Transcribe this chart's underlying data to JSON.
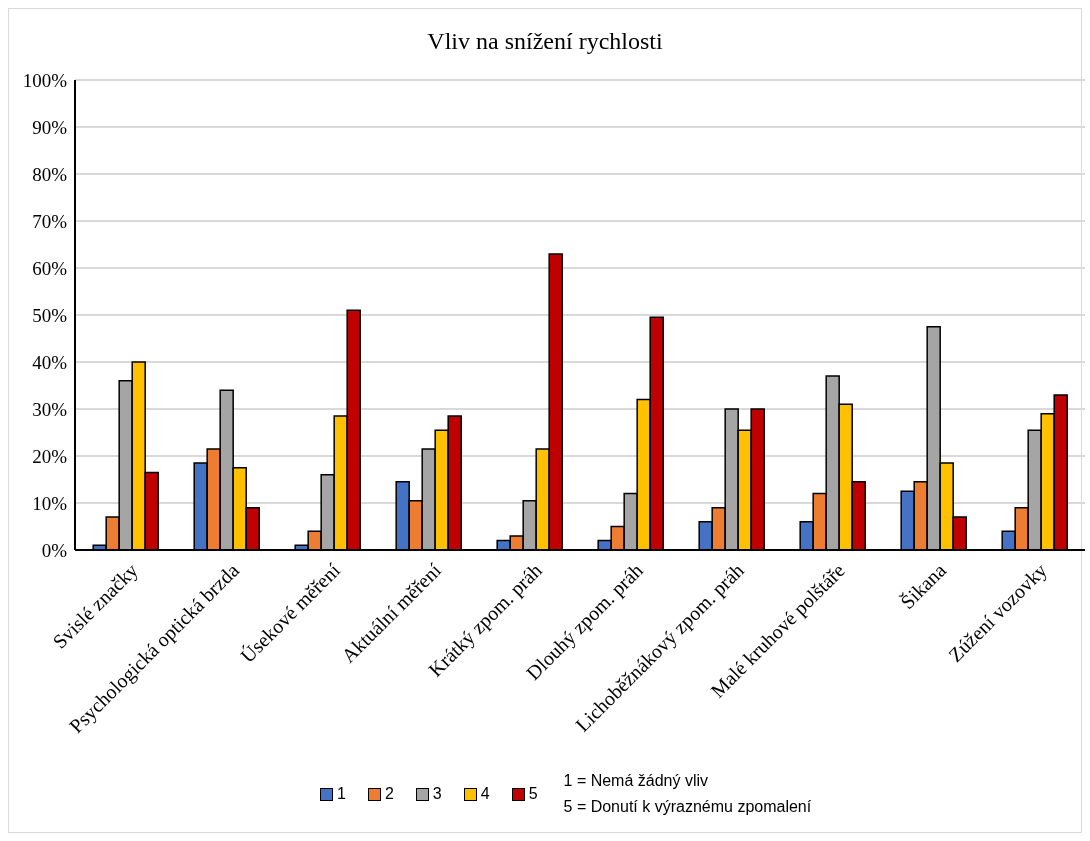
{
  "chart_data": {
    "type": "bar",
    "title": "Vliv na snížení rychlosti",
    "categories": [
      "Svislé značky",
      "Psychologická optická brzda",
      "Úsekové měření",
      "Aktuální měření",
      "Krátký zpom. práh",
      "Dlouhý zpom. práh",
      "Lichoběžnákový zpom. práh",
      "Malé kruhové polštáře",
      "Šikana",
      "Zúžení vozovky"
    ],
    "series": [
      {
        "name": "1",
        "color": "#4472c4",
        "values": [
          1,
          18.5,
          1,
          14.5,
          2,
          2,
          6,
          6,
          12.5,
          4
        ]
      },
      {
        "name": "2",
        "color": "#ed7d31",
        "values": [
          7,
          21.5,
          4,
          10.5,
          3,
          5,
          9,
          12,
          14.5,
          9
        ]
      },
      {
        "name": "3",
        "color": "#a5a5a5",
        "values": [
          36,
          34,
          16,
          21.5,
          10.5,
          12,
          30,
          37,
          47.5,
          25.5
        ]
      },
      {
        "name": "4",
        "color": "#ffc000",
        "values": [
          40,
          17.5,
          28.5,
          25.5,
          21.5,
          32,
          25.5,
          31,
          18.5,
          29
        ]
      },
      {
        "name": "5",
        "color": "#c00000",
        "values": [
          16.5,
          9,
          51,
          28.5,
          63,
          49.5,
          30,
          14.5,
          7,
          33
        ]
      }
    ],
    "ylim": [
      0,
      100
    ],
    "yticks": [
      {
        "value": 0,
        "label": "0%"
      },
      {
        "value": 10,
        "label": "10%"
      },
      {
        "value": 20,
        "label": "20%"
      },
      {
        "value": 30,
        "label": "30%"
      },
      {
        "value": 40,
        "label": "40%"
      },
      {
        "value": 50,
        "label": "50%"
      },
      {
        "value": 60,
        "label": "60%"
      },
      {
        "value": 70,
        "label": "70%"
      },
      {
        "value": 80,
        "label": "80%"
      },
      {
        "value": 90,
        "label": "90%"
      },
      {
        "value": 100,
        "label": "100%"
      }
    ],
    "grid": "y",
    "legend": "bottom",
    "annotations": [
      "1 = Nemá žádný vliv",
      "5 = Donutí k výraznému zpomalení"
    ]
  }
}
